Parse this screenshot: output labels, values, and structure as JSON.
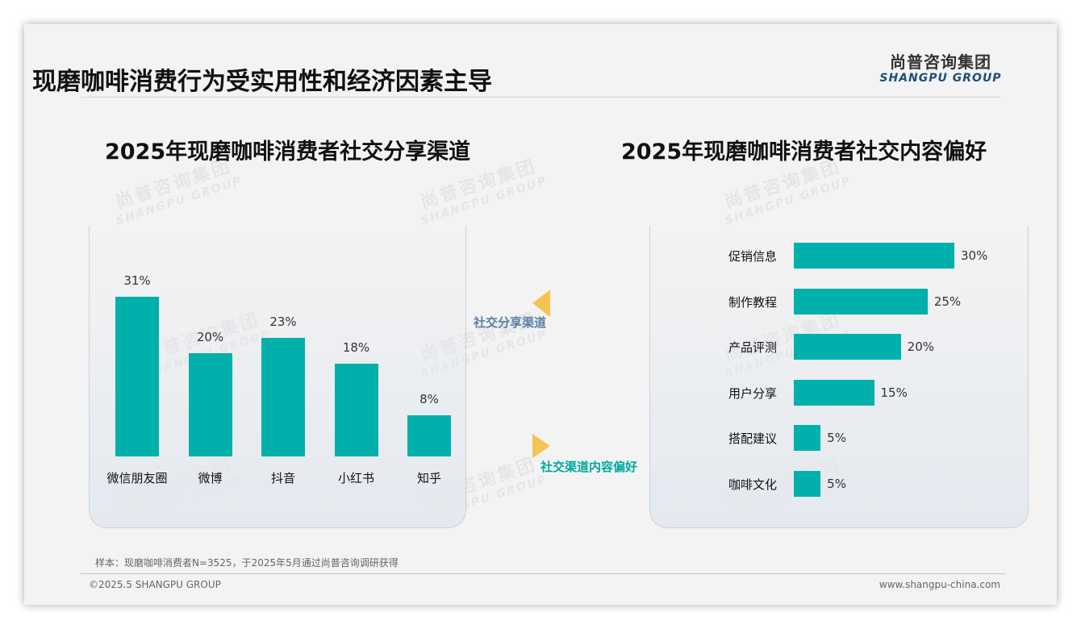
{
  "page": {
    "title": "现磨咖啡消费行为受实用性和经济因素主导",
    "logo_cn": "尚普咨询集团",
    "logo_en": "SHANGPU GROUP",
    "watermark_cn": "尚普咨询集团",
    "watermark_en": "SHANGPU GROUP"
  },
  "nav": {
    "label_1": "社交分享渠道",
    "label_2": "社交渠道内容偏好",
    "color_1": "#5a7fa6",
    "color_2": "#00a89f",
    "arrow_color": "#f6c451"
  },
  "chart_data": [
    {
      "type": "bar",
      "title": "2025年现磨咖啡消费者社交分享渠道",
      "categories": [
        "微信朋友圈",
        "微博",
        "抖音",
        "小红书",
        "知乎"
      ],
      "values": [
        31,
        20,
        23,
        18,
        8
      ],
      "labels": [
        "31%",
        "20%",
        "23%",
        "18%",
        "8%"
      ],
      "ylim": [
        0,
        31
      ],
      "color": "#00b0aa"
    },
    {
      "type": "bar",
      "orientation": "horizontal",
      "title": "2025年现磨咖啡消费者社交内容偏好",
      "categories": [
        "促销信息",
        "制作教程",
        "产品评测",
        "用户分享",
        "搭配建议",
        "咖啡文化"
      ],
      "values": [
        30,
        25,
        20,
        15,
        5,
        5
      ],
      "labels": [
        "30%",
        "25%",
        "20%",
        "15%",
        "5%",
        "5%"
      ],
      "xlim": [
        0,
        30
      ],
      "color": "#00b0aa"
    }
  ],
  "footer": {
    "sample": "样本：现磨咖啡消费者N=3525，于2025年5月通过尚普咨询调研获得",
    "copyright": "©2025.5 SHANGPU GROUP",
    "website": "www.shangpu-china.com"
  }
}
